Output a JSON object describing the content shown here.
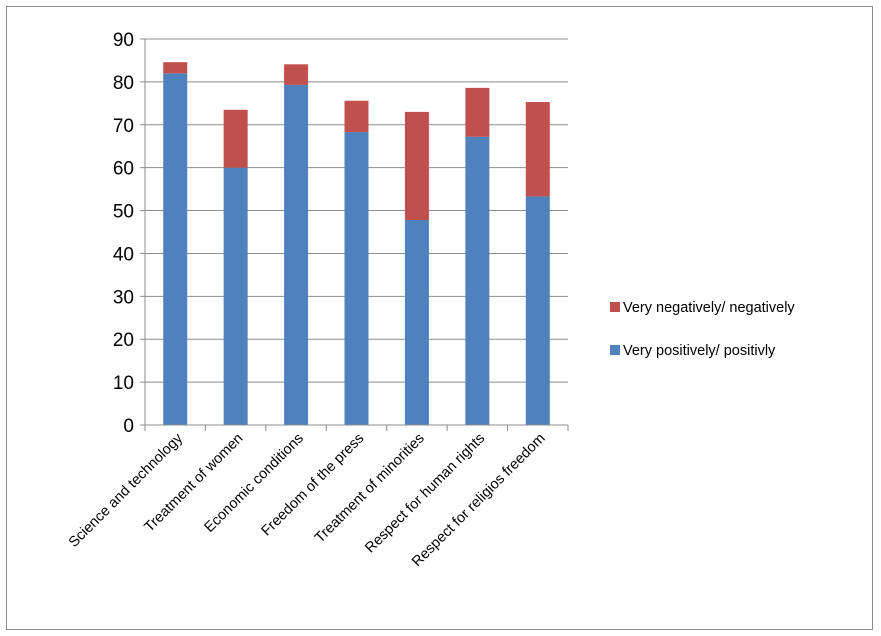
{
  "chart_data": {
    "type": "bar",
    "stacked": true,
    "categories": [
      "Science and technology",
      "Treatment of women",
      "Economic conditions",
      "Freedom of the press",
      "Treatment of minorities",
      "Respect for human rights",
      "Respect for religios freedom"
    ],
    "series": [
      {
        "name": "Very positively/ positivly",
        "color": "#4f81bd",
        "values": [
          82,
          60,
          79.3,
          68.3,
          47.8,
          67.2,
          53.3
        ]
      },
      {
        "name": "Very negatively/ negatively",
        "color": "#c0504d",
        "values": [
          2.6,
          13.5,
          4.8,
          7.3,
          25.2,
          11.4,
          22.0
        ]
      }
    ],
    "ylim": [
      0,
      90
    ],
    "yticks": [
      0,
      10,
      20,
      30,
      40,
      50,
      60,
      70,
      80,
      90
    ],
    "grid": true,
    "legend_position": "right"
  }
}
